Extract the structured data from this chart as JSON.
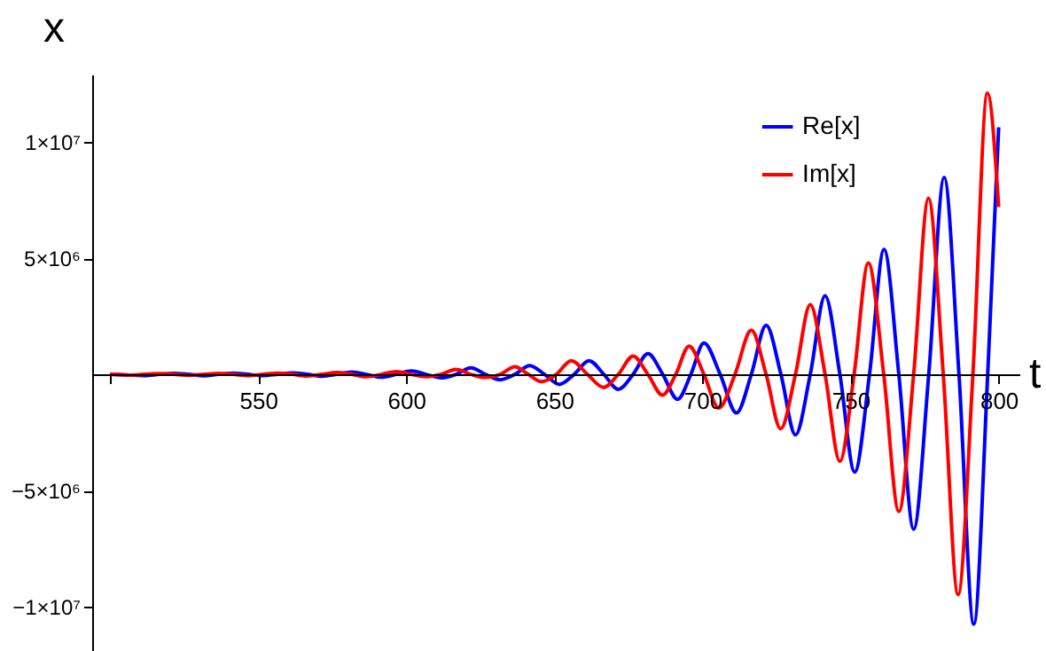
{
  "chart_data": {
    "type": "line",
    "xlabel": "t",
    "ylabel": "x",
    "xlim": [
      494,
      807
    ],
    "ylim": [
      -11900000,
      12900000
    ],
    "xticks": [
      {
        "value": 500,
        "label": null
      },
      550,
      600,
      650,
      700,
      750,
      800
    ],
    "yticks": [
      {
        "value": -10000000,
        "label": "−1×10⁷"
      },
      {
        "value": -5000000,
        "label": "−5×10⁶"
      },
      {
        "value": 5000000,
        "label": "5×10⁶"
      },
      {
        "value": 10000000,
        "label": "1×10⁷"
      }
    ],
    "legend": "top right",
    "series": [
      {
        "name": "Re[x]",
        "color": "#0000ff",
        "x": [
          500,
          511.6,
          516.6,
          521.6,
          526.6,
          531.6,
          536.6,
          541.6,
          546.6,
          551.6,
          556.6,
          561.6,
          566.6,
          571.6,
          576.6,
          581.6,
          586.6,
          591.6,
          596.6,
          601.7,
          606.7,
          611.8,
          616.8,
          621.8,
          626.8,
          631.7,
          636.7,
          641.7,
          646.7,
          651.7,
          656.7,
          661.7,
          666.7,
          671.6,
          676.6,
          681.6,
          686.6,
          691.6,
          696.1,
          700.5,
          706,
          711.5,
          716.5,
          721.5,
          726.5,
          731.4,
          736.4,
          741.4,
          746.4,
          751.4,
          756.4,
          761.3,
          766.3,
          771.3,
          776.4,
          781.6,
          786.6,
          791.6,
          796.3,
          800
        ],
        "values": [
          0,
          -50000,
          0,
          40000,
          0,
          -60000,
          0,
          50000,
          0,
          -50000,
          0,
          60000,
          0,
          -80000,
          0,
          100000,
          0,
          -120000,
          0,
          150000,
          0,
          -150000,
          0,
          280000,
          0,
          -230000,
          0,
          380000,
          0,
          -430000,
          0,
          590000,
          0,
          -640000,
          0,
          890000,
          0,
          -1070000,
          0,
          1350000,
          0,
          -1660000,
          0,
          2110000,
          0,
          -2600000,
          0,
          3380000,
          0,
          -4200000,
          0,
          5370000,
          0,
          -6660000,
          0,
          8470000,
          0,
          -10740000,
          0,
          10630000
        ]
      },
      {
        "name": "Im[x]",
        "color": "#ff0000",
        "x": [
          500,
          506.5,
          511.5,
          516.6,
          521.6,
          526.6,
          531.6,
          536.6,
          541.6,
          546.6,
          551.6,
          556.6,
          561.6,
          566.6,
          571.6,
          576.6,
          581.6,
          586.6,
          591.6,
          596.7,
          601.7,
          606.7,
          611.7,
          616.8,
          621.8,
          626.7,
          631.7,
          636.7,
          641.2,
          645.7,
          650.7,
          655.7,
          661.2,
          666.6,
          671.6,
          676.6,
          681.6,
          686.5,
          691,
          695.5,
          700.5,
          705.5,
          711,
          716.5,
          721.5,
          726.4,
          731.4,
          736.4,
          741.4,
          746.4,
          751.2,
          756,
          761.2,
          766.3,
          771.3,
          776.3,
          781.3,
          786.3,
          791.3,
          796.2,
          800
        ],
        "values": [
          0,
          -30000,
          0,
          30000,
          0,
          -40000,
          0,
          40000,
          0,
          -50000,
          0,
          50000,
          0,
          -70000,
          0,
          80000,
          0,
          -100000,
          0,
          120000,
          0,
          -100000,
          0,
          210000,
          0,
          -130000,
          0,
          330000,
          0,
          -310000,
          0,
          590000,
          0,
          -560000,
          0,
          790000,
          0,
          -890000,
          0,
          1220000,
          0,
          -1450000,
          0,
          1900000,
          0,
          -2340000,
          0,
          3000000,
          0,
          -3740000,
          0,
          4790000,
          0,
          -5900000,
          0,
          7580000,
          0,
          -9470000,
          0,
          12100000,
          7200000
        ]
      }
    ]
  }
}
